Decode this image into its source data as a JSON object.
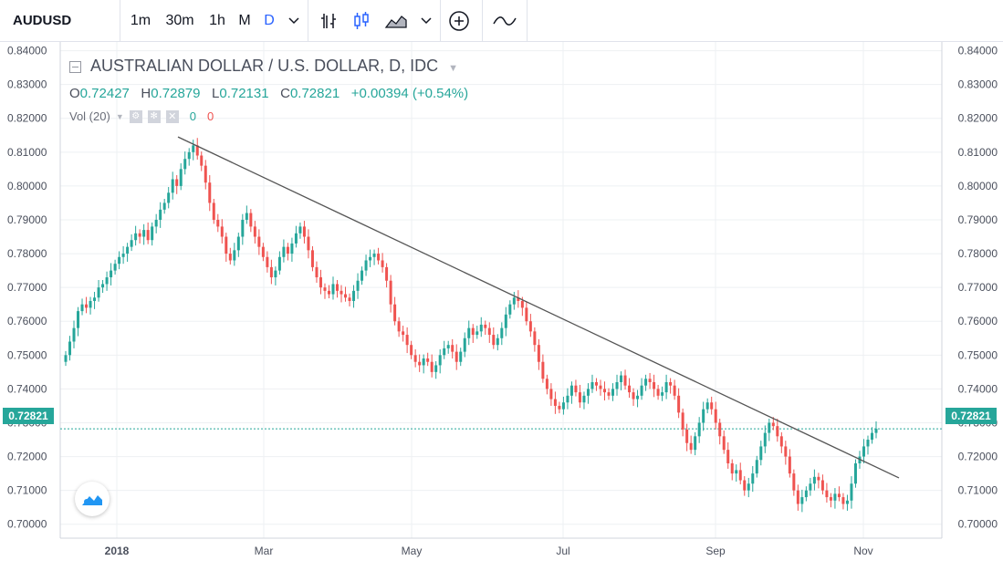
{
  "toolbar": {
    "symbol": "AUDUSD",
    "intervals": [
      "1m",
      "30m",
      "1h",
      "M",
      "D"
    ],
    "active_interval": "D",
    "icons": [
      "chevron-down-icon",
      "bar-chart-icon",
      "candles-icon",
      "area-chart-icon",
      "chevron-down-icon",
      "add-indicator-icon",
      "compare-icon"
    ]
  },
  "legend": {
    "title": "AUSTRALIAN DOLLAR / U.S. DOLLAR, D, IDC",
    "o_label": "O",
    "o": "0.72427",
    "h_label": "H",
    "h": "0.72879",
    "l_label": "L",
    "l": "0.72131",
    "c_label": "C",
    "c": "0.72821",
    "change": "+0.00394 (+0.54%)",
    "vol_label": "Vol (20)",
    "vol_up": "0",
    "vol_down": "0"
  },
  "price_tag": "0.72821",
  "colors": {
    "up": "#26a69a",
    "down": "#ef5350",
    "trendline": "#555555",
    "grid": "#eef0f3"
  },
  "chart_data": {
    "type": "candlestick",
    "y_ticks": [
      "0.84000",
      "0.83000",
      "0.82000",
      "0.81000",
      "0.80000",
      "0.79000",
      "0.78000",
      "0.77000",
      "0.76000",
      "0.75000",
      "0.74000",
      "0.73000",
      "0.72000",
      "0.71000",
      "0.70000"
    ],
    "ylim": [
      0.6975,
      0.8415
    ],
    "x_ticks": [
      "2018",
      "Mar",
      "May",
      "Jul",
      "Sep",
      "Nov"
    ],
    "last_price": 0.72821,
    "trendline": {
      "from": [
        "2018-01-26",
        0.8145
      ],
      "to": [
        "2018-11-09",
        0.7137
      ]
    },
    "series_close": [
      0.75,
      0.754,
      0.758,
      0.763,
      0.765,
      0.764,
      0.766,
      0.767,
      0.77,
      0.771,
      0.773,
      0.775,
      0.777,
      0.779,
      0.78,
      0.782,
      0.784,
      0.786,
      0.785,
      0.787,
      0.784,
      0.788,
      0.79,
      0.793,
      0.795,
      0.798,
      0.802,
      0.8,
      0.805,
      0.808,
      0.81,
      0.812,
      0.809,
      0.806,
      0.801,
      0.795,
      0.79,
      0.788,
      0.785,
      0.78,
      0.778,
      0.781,
      0.785,
      0.79,
      0.792,
      0.788,
      0.785,
      0.782,
      0.779,
      0.776,
      0.773,
      0.775,
      0.779,
      0.782,
      0.78,
      0.783,
      0.786,
      0.788,
      0.785,
      0.781,
      0.776,
      0.773,
      0.77,
      0.769,
      0.768,
      0.771,
      0.769,
      0.768,
      0.767,
      0.766,
      0.769,
      0.772,
      0.775,
      0.778,
      0.779,
      0.78,
      0.778,
      0.776,
      0.772,
      0.765,
      0.76,
      0.757,
      0.756,
      0.753,
      0.75,
      0.748,
      0.747,
      0.749,
      0.748,
      0.745,
      0.747,
      0.75,
      0.752,
      0.753,
      0.751,
      0.748,
      0.751,
      0.755,
      0.758,
      0.756,
      0.757,
      0.759,
      0.758,
      0.756,
      0.753,
      0.755,
      0.758,
      0.762,
      0.765,
      0.767,
      0.766,
      0.764,
      0.76,
      0.757,
      0.753,
      0.748,
      0.743,
      0.74,
      0.737,
      0.735,
      0.734,
      0.736,
      0.738,
      0.741,
      0.739,
      0.736,
      0.738,
      0.74,
      0.742,
      0.741,
      0.74,
      0.739,
      0.738,
      0.74,
      0.742,
      0.744,
      0.741,
      0.739,
      0.737,
      0.738,
      0.741,
      0.743,
      0.742,
      0.74,
      0.738,
      0.739,
      0.742,
      0.741,
      0.738,
      0.733,
      0.728,
      0.724,
      0.722,
      0.726,
      0.73,
      0.734,
      0.736,
      0.734,
      0.73,
      0.726,
      0.722,
      0.718,
      0.715,
      0.716,
      0.713,
      0.71,
      0.712,
      0.715,
      0.719,
      0.723,
      0.727,
      0.73,
      0.729,
      0.726,
      0.723,
      0.72,
      0.715,
      0.71,
      0.706,
      0.708,
      0.71,
      0.712,
      0.714,
      0.713,
      0.71,
      0.708,
      0.707,
      0.709,
      0.708,
      0.706,
      0.707,
      0.712,
      0.718,
      0.72,
      0.723,
      0.725,
      0.727,
      0.7282
    ]
  }
}
